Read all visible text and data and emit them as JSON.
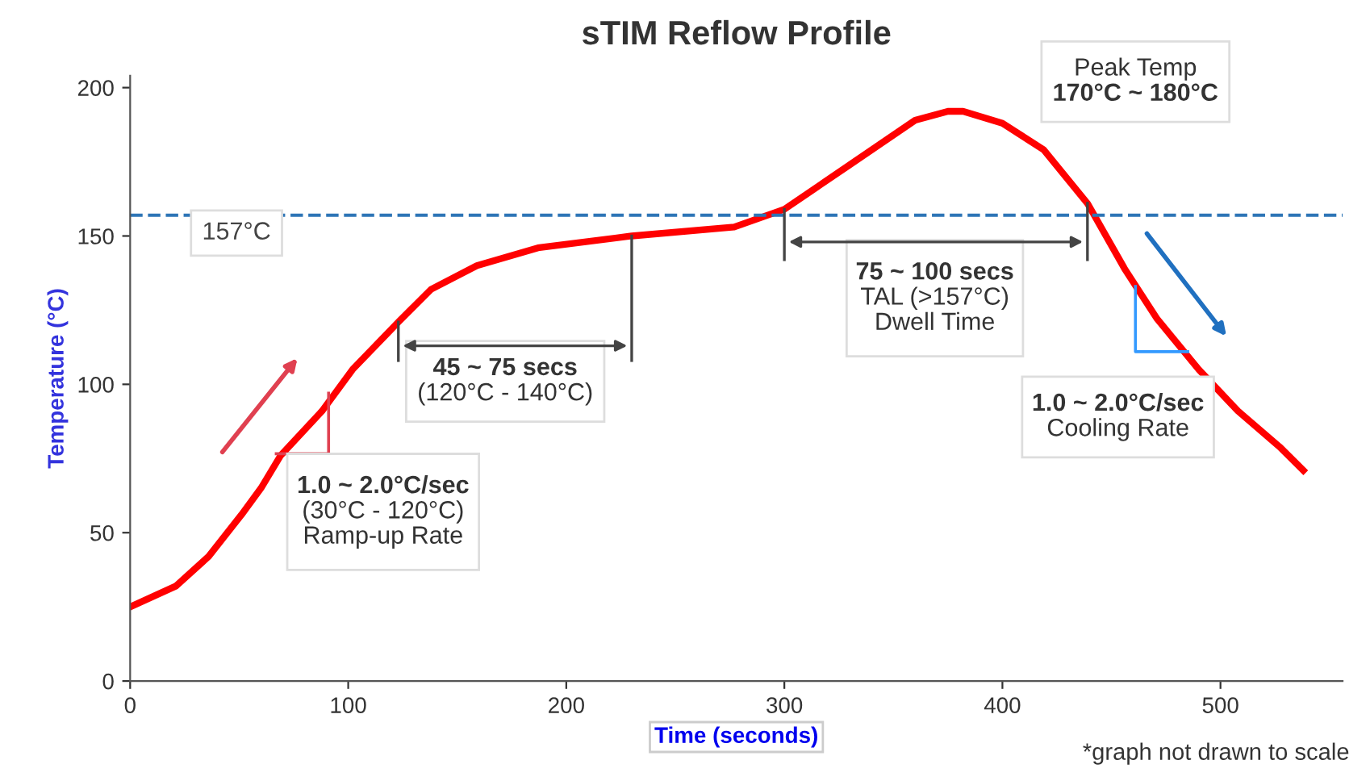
{
  "chart_data": {
    "type": "line",
    "title": "sTIM Reflow Profile",
    "xlabel": "Time (seconds)",
    "ylabel": "Temperature (°C)",
    "x": [
      0,
      21,
      36,
      51,
      60,
      69,
      88,
      102,
      123,
      138,
      159,
      187,
      230,
      277,
      300,
      330,
      360,
      375,
      382,
      400,
      419,
      439,
      456,
      471,
      490,
      508,
      527,
      538
    ],
    "series": [
      {
        "color": "#ff0000",
        "values": [
          25,
          32,
          42,
          56,
          65,
          76,
          91,
          105,
          121,
          132,
          140,
          146,
          150,
          153,
          159,
          174,
          189,
          192,
          192,
          188,
          179,
          161,
          139,
          122,
          105,
          91,
          79,
          71
        ]
      }
    ],
    "xlim": [
      0,
      556
    ],
    "xticks": [
      0,
      100,
      200,
      300,
      400,
      500
    ],
    "ylim": [
      0,
      204
    ],
    "yticks": [
      0,
      50,
      100,
      150,
      200
    ],
    "grid": false,
    "legend": false,
    "marker": "none",
    "line_style": "solid",
    "ref_lines": [
      {
        "axis": "y",
        "value": 157,
        "label": "157°C",
        "color": "#2e75b6",
        "line_style": "dashed"
      }
    ],
    "annotations": [
      "1.0 ~ 2.0°C/sec\n(30°C - 120°C)\nRamp-up Rate",
      "45 ~ 75 secs\n(120°C - 140°C)",
      "75 ~ 100 secs\nTAL (>157°C)\nDwell Time",
      "1.0 ~ 2.0°C/sec\nCooling Rate",
      "Peak Temp\n170°C ~ 180°C",
      "*graph not drawn to scale"
    ]
  }
}
